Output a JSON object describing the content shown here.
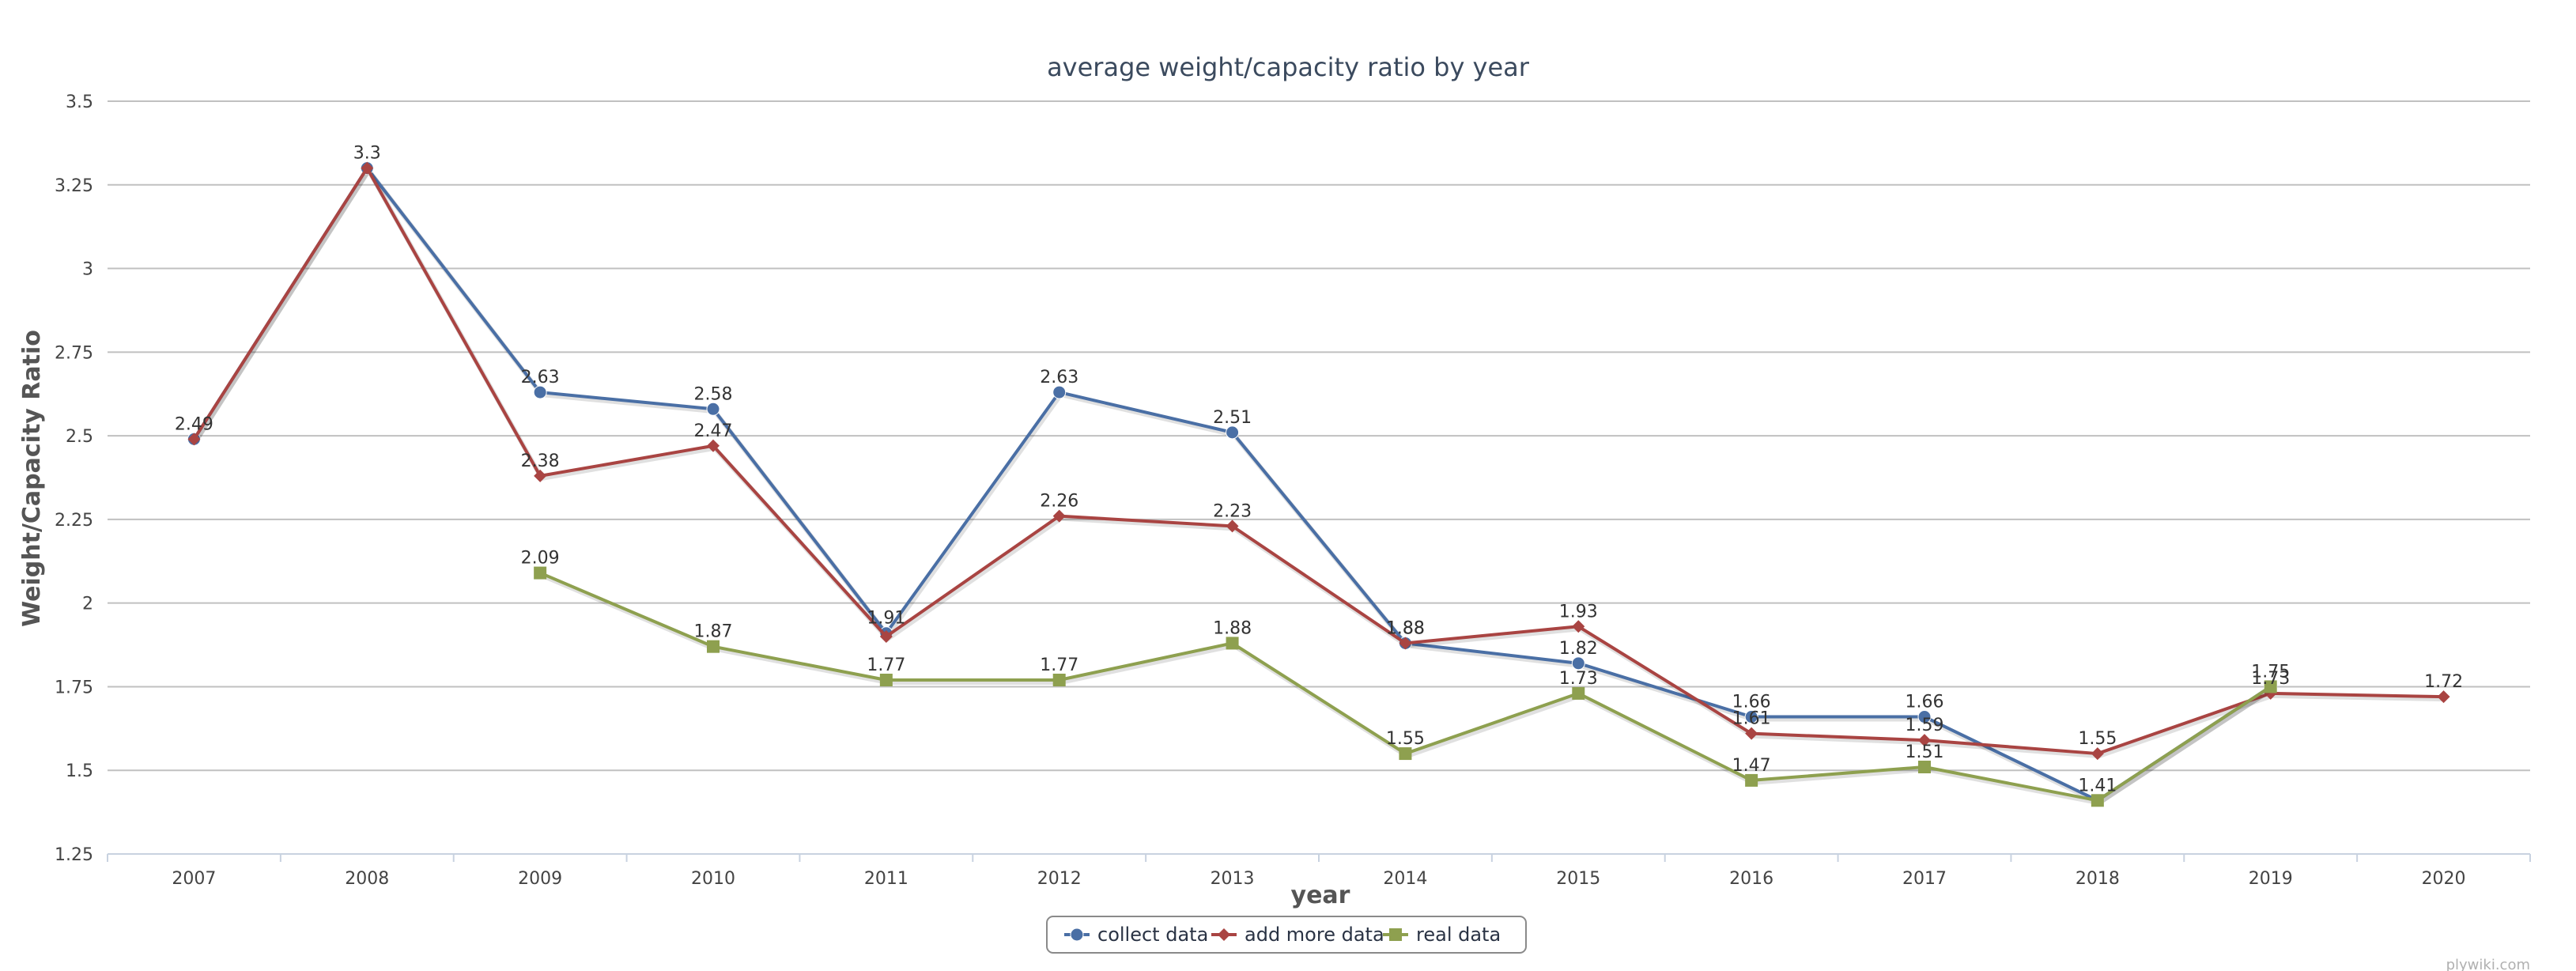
{
  "chart_data": {
    "type": "line",
    "title": "average weight/capacity ratio by year",
    "xlabel": "year",
    "ylabel": "Weight/Capacity Ratio",
    "categories": [
      "2007",
      "2008",
      "2009",
      "2010",
      "2011",
      "2012",
      "2013",
      "2014",
      "2015",
      "2016",
      "2017",
      "2018",
      "2019",
      "2020"
    ],
    "ylim": [
      1.25,
      3.5
    ],
    "yticks": [
      "1.25",
      "1.5",
      "1.75",
      "2",
      "2.25",
      "2.5",
      "2.75",
      "3",
      "3.25",
      "3.5"
    ],
    "grid": true,
    "legend_position": "bottom-center",
    "series": [
      {
        "name": "collect data",
        "color": "#4a6fa5",
        "marker": "circle",
        "values": [
          2.49,
          3.3,
          2.63,
          2.58,
          1.91,
          2.63,
          2.51,
          1.88,
          1.82,
          1.66,
          1.66,
          1.41,
          1.75,
          null
        ],
        "labels": [
          "",
          "",
          "2.63",
          "2.58",
          "1.91",
          "2.63",
          "2.51",
          "1.88",
          "1.82",
          "1.66",
          "1.66",
          "",
          "1.75",
          ""
        ]
      },
      {
        "name": "add more data",
        "color": "#a94442",
        "marker": "diamond",
        "values": [
          2.49,
          3.3,
          2.38,
          2.47,
          1.9,
          2.26,
          2.23,
          1.88,
          1.93,
          1.61,
          1.59,
          1.55,
          1.73,
          1.72
        ],
        "labels": [
          "2.49",
          "3.3",
          "2.38",
          "2.47",
          "",
          "2.26",
          "2.23",
          "1.88",
          "1.93",
          "1.61",
          "1.59",
          "1.55",
          "1.73",
          "1.72"
        ]
      },
      {
        "name": "real data",
        "color": "#8ea04f",
        "marker": "square",
        "values": [
          null,
          null,
          2.09,
          1.87,
          1.77,
          1.77,
          1.88,
          1.55,
          1.73,
          1.47,
          1.51,
          1.41,
          1.75,
          null
        ],
        "labels": [
          "",
          "",
          "2.09",
          "1.87",
          "1.77",
          "1.77",
          "1.88",
          "1.55",
          "1.73",
          "1.47",
          "1.51",
          "1.41",
          "",
          ""
        ]
      }
    ],
    "watermark": "plywiki.com"
  }
}
